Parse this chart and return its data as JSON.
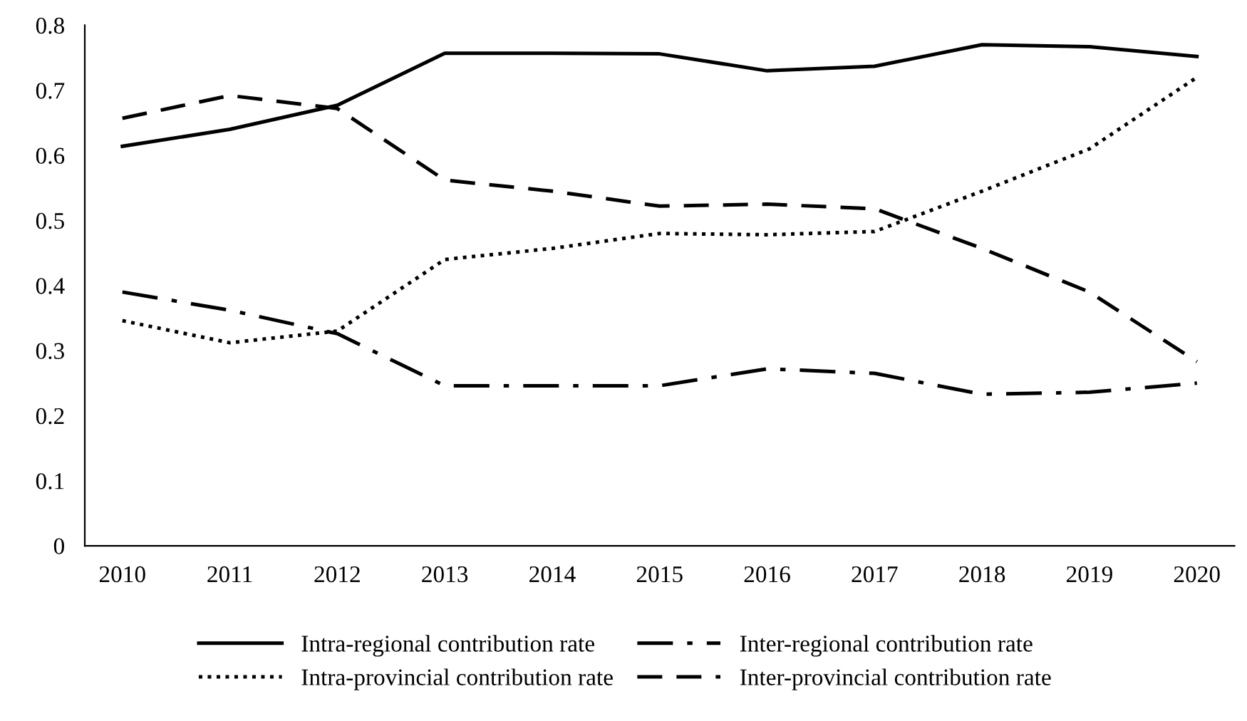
{
  "chart_data": {
    "type": "line",
    "categories": [
      "2010",
      "2011",
      "2012",
      "2013",
      "2014",
      "2015",
      "2016",
      "2017",
      "2018",
      "2019",
      "2020"
    ],
    "series": [
      {
        "name": "Intra-regional contribution rate",
        "color": "#000000",
        "line_style": "solid",
        "values": [
          0.614,
          0.64,
          0.677,
          0.757,
          0.757,
          0.756,
          0.73,
          0.737,
          0.77,
          0.767,
          0.752
        ]
      },
      {
        "name": "Intra-provincial contribution rate",
        "color": "#000000",
        "line_style": "dotted",
        "values": [
          0.346,
          0.312,
          0.33,
          0.44,
          0.457,
          0.48,
          0.478,
          0.483,
          0.545,
          0.61,
          0.72
        ]
      },
      {
        "name": "Inter-regional contribution rate",
        "color": "#000000",
        "line_style": "dashdot",
        "values": [
          0.39,
          0.362,
          0.326,
          0.246,
          0.246,
          0.246,
          0.272,
          0.265,
          0.233,
          0.236,
          0.25
        ]
      },
      {
        "name": "Inter-provincial contribution rate",
        "color": "#000000",
        "line_style": "dashed",
        "values": [
          0.657,
          0.692,
          0.672,
          0.562,
          0.545,
          0.522,
          0.525,
          0.518,
          0.457,
          0.39,
          0.283
        ]
      }
    ],
    "ylim": [
      0,
      0.8
    ],
    "yticks": [
      0,
      0.1,
      0.2,
      0.3,
      0.4,
      0.5,
      0.6,
      0.7,
      0.8
    ],
    "grid": false,
    "legend": "bottom",
    "marker": "none"
  }
}
